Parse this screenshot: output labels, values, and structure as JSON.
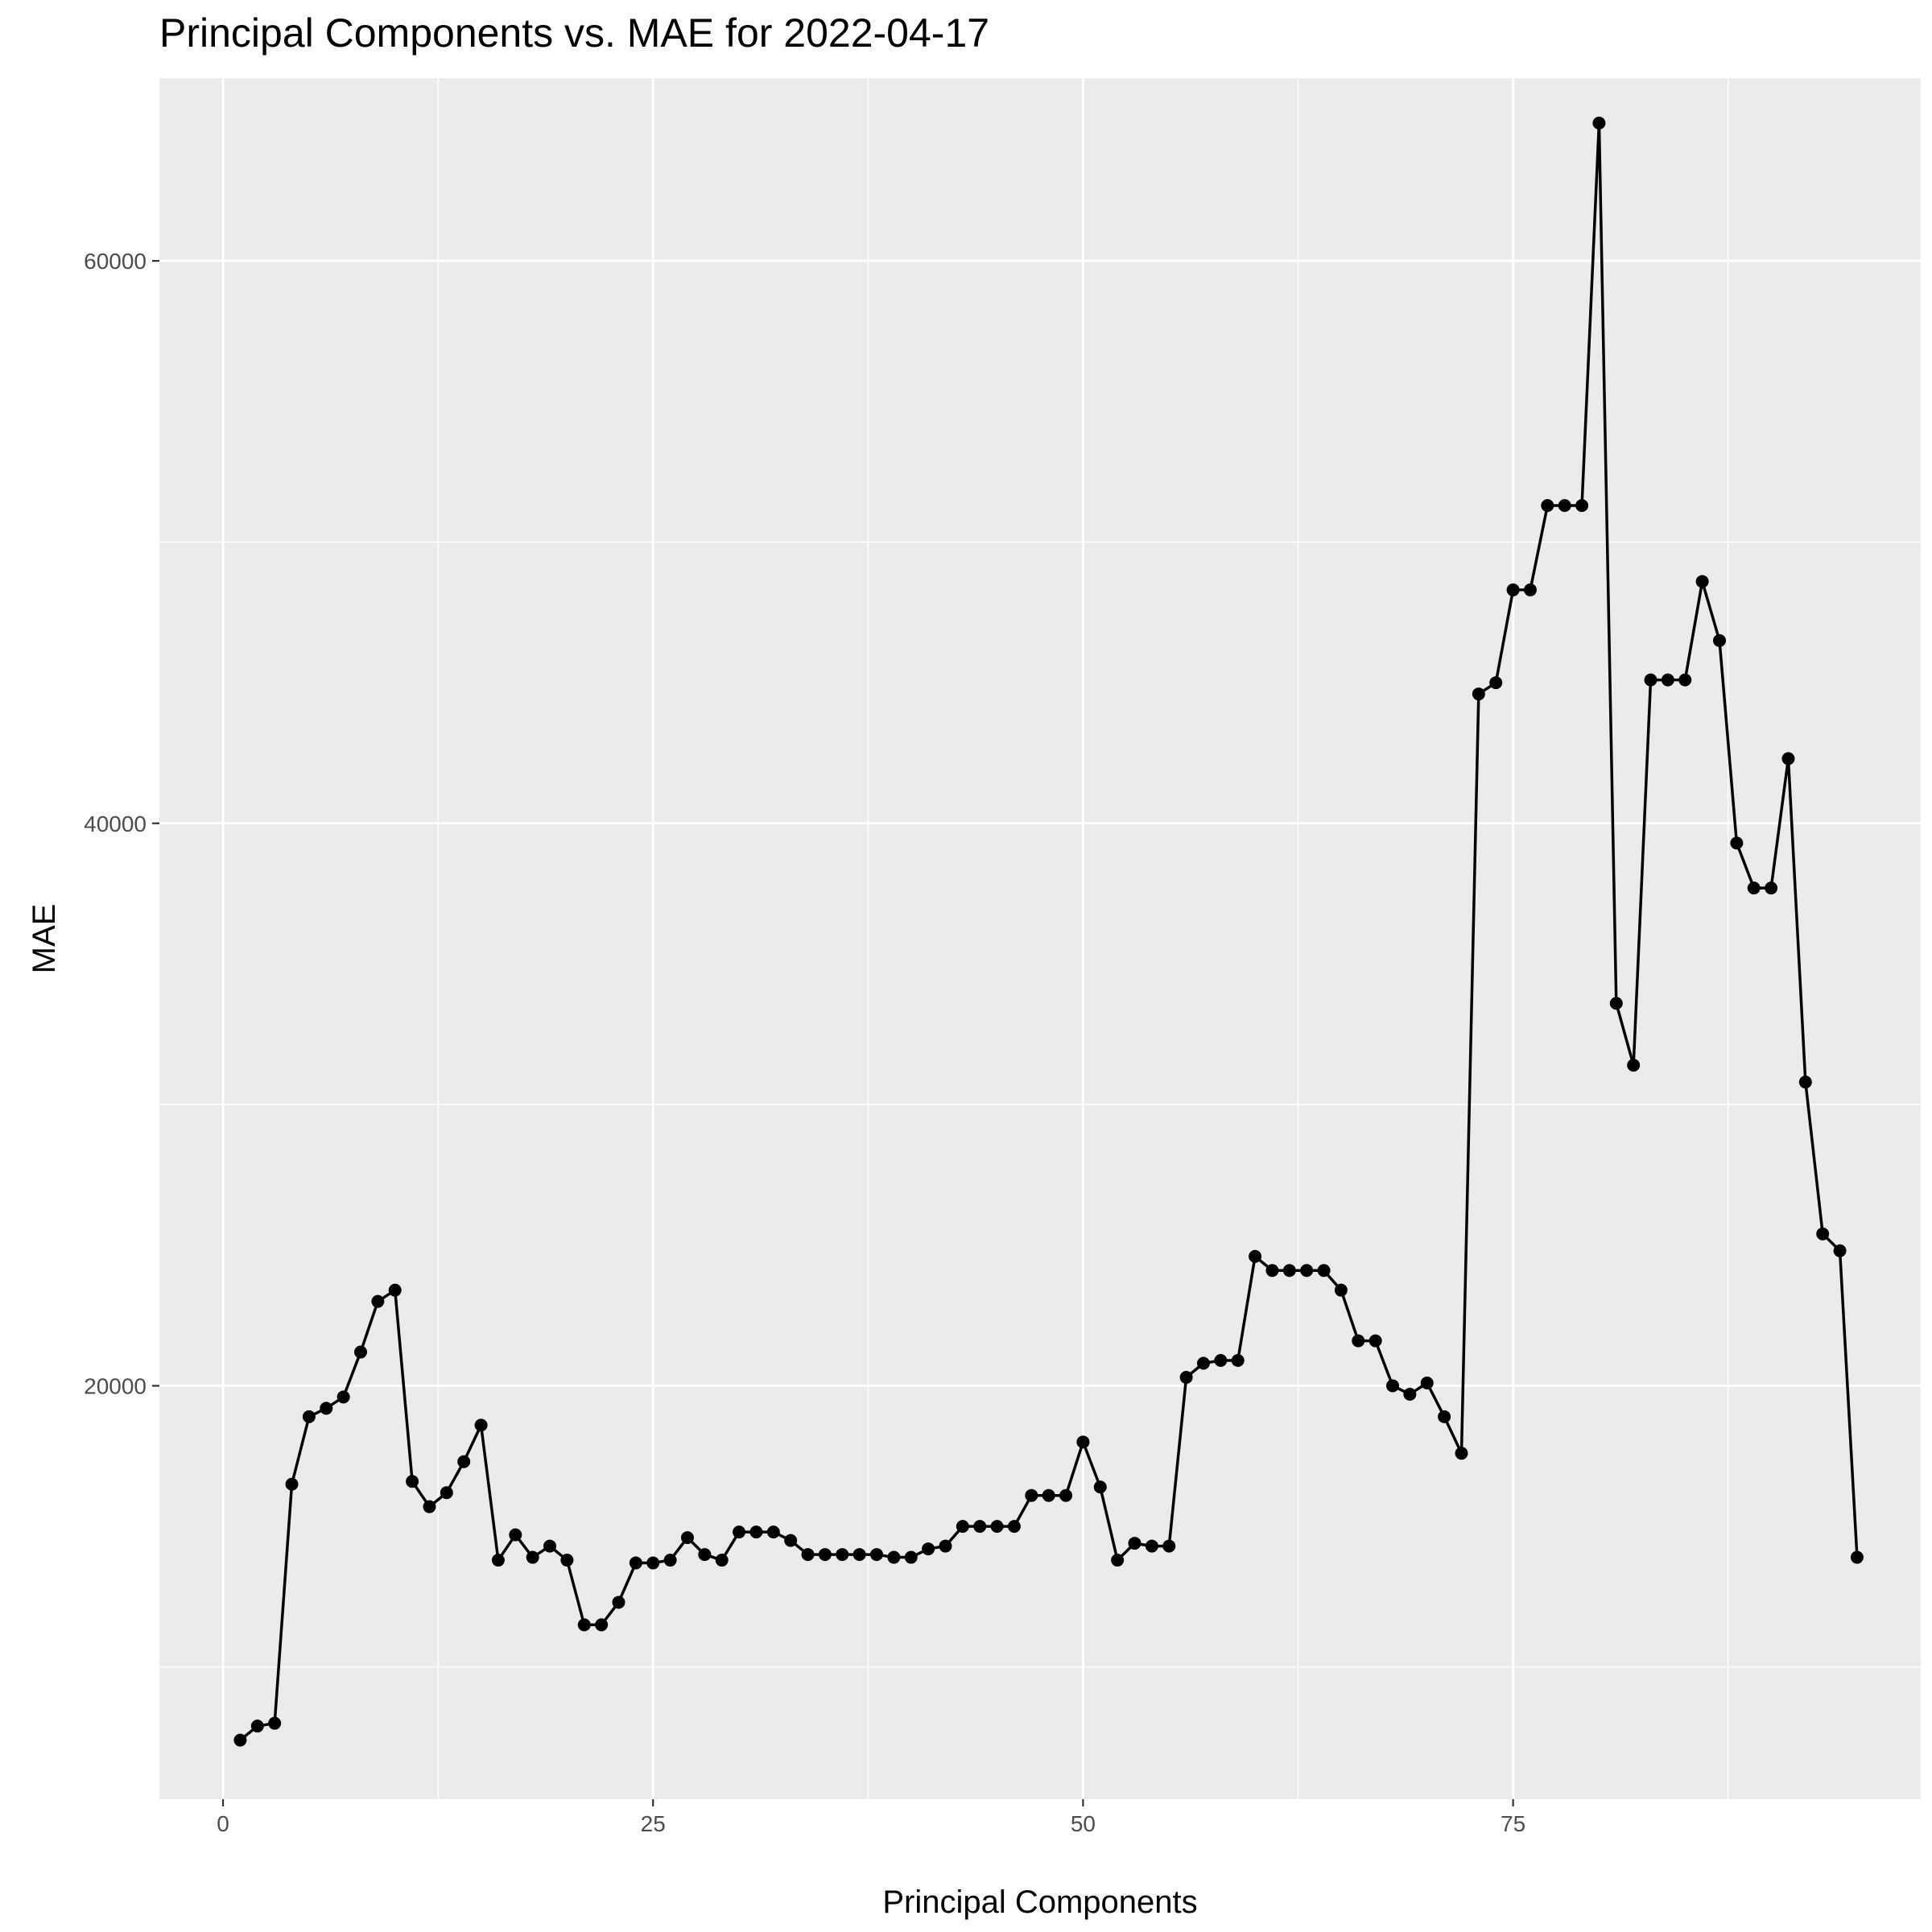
{
  "chart_data": {
    "type": "line",
    "title": "Principal Components vs. MAE for 2022-04-17",
    "xlabel": "Principal Components",
    "ylabel": "MAE",
    "xlim": [
      -3.7,
      98.7
    ],
    "ylim": [
      5300,
      66500
    ],
    "x_ticks": [
      0,
      25,
      50,
      75
    ],
    "x_tick_labels": [
      "0",
      "25",
      "50",
      "75"
    ],
    "y_ticks": [
      20000,
      40000,
      60000
    ],
    "y_tick_labels": [
      "20000",
      "40000",
      "60000"
    ],
    "grid": true,
    "markers": true,
    "line_color": "#000000",
    "panel_background": "#ebebeb",
    "grid_color": "#ffffff",
    "series": [
      {
        "x": [
          1,
          2,
          3,
          4,
          5,
          6,
          7,
          8,
          9,
          10,
          11,
          12,
          13,
          14,
          15,
          16,
          17,
          18,
          19,
          20,
          21,
          22,
          23,
          24,
          25,
          26,
          27,
          28,
          29,
          30,
          31,
          32,
          33,
          34,
          35,
          36,
          37,
          38,
          39,
          40,
          41,
          42,
          43,
          44,
          45,
          46,
          47,
          48,
          49,
          50,
          51,
          52,
          53,
          54,
          55,
          56,
          57,
          58,
          59,
          60,
          61,
          62,
          63,
          64,
          65,
          66,
          67,
          68,
          69,
          70,
          71,
          72,
          73,
          74,
          75,
          76,
          77,
          78,
          79,
          80,
          81,
          82,
          83,
          84,
          85,
          86,
          87,
          88,
          89,
          90,
          91,
          92,
          93,
          94,
          95
        ],
        "y": [
          7400,
          7900,
          8000,
          16500,
          18900,
          19200,
          19600,
          21200,
          23000,
          23400,
          16600,
          15700,
          16200,
          17300,
          18600,
          13800,
          14700,
          13900,
          14300,
          13800,
          11500,
          11500,
          12300,
          13700,
          13700,
          13800,
          14600,
          14000,
          13800,
          14800,
          14800,
          14800,
          14500,
          14000,
          14000,
          14000,
          14000,
          14000,
          13900,
          13900,
          14200,
          14300,
          15000,
          15000,
          15000,
          15000,
          16100,
          16100,
          16100,
          18000,
          16400,
          13800,
          14400,
          14300,
          14300,
          20300,
          20800,
          20900,
          20900,
          24600,
          24100,
          24100,
          24100,
          24100,
          23400,
          21600,
          21600,
          20000,
          19700,
          20100,
          18900,
          17600,
          44600,
          45000,
          48300,
          48300,
          51300,
          51300,
          51300,
          64900,
          33600,
          31400,
          45100,
          45100,
          45100,
          48600,
          46500,
          39300,
          37700,
          37700,
          42300,
          30800,
          25400,
          24800,
          13900
        ]
      }
    ]
  }
}
